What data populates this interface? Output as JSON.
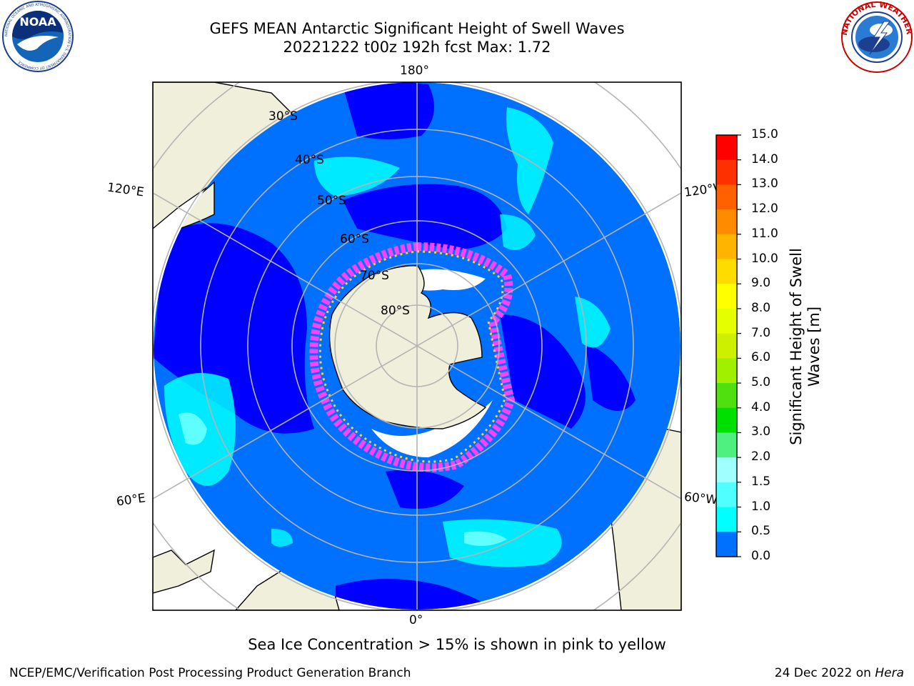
{
  "header": {
    "title": "GEFS MEAN Antarctic Significant Height of Swell Waves",
    "subtitle": "20221222 t00z 192h fcst   Max: 1.72"
  },
  "logos": {
    "left": {
      "text": "NOAA",
      "ring": "NATIONAL OCEANIC AND ATMOSPHERIC ADMINISTRATION  U.S. DEPARTMENT OF COMMERCE",
      "icon": "noaa-logo"
    },
    "right": {
      "ring": "NATIONAL WEATHER SERVICE",
      "icon": "nws-logo"
    }
  },
  "map": {
    "projection": "south-polar-stereographic",
    "meridian_labels": [
      "180°",
      "120°E",
      "120°W",
      "60°E",
      "60°W",
      "0°"
    ],
    "parallel_labels": [
      "30°S",
      "40°S",
      "50°S",
      "60°S",
      "70°S",
      "80°S"
    ],
    "colors": {
      "land": "#efefdb",
      "ocean_low": "#0000ff",
      "ocean_mid": "#0070ff",
      "ocean_high": "#00ffff",
      "ice_pink": "#ff40ff",
      "ice_yellow": "#ffd030",
      "grid": "#b4b4b4"
    }
  },
  "colorbar": {
    "ticks": [
      "15.0",
      "14.0",
      "13.0",
      "12.0",
      "11.0",
      "10.0",
      "9.0",
      "8.0",
      "7.0",
      "6.0",
      "5.0",
      "4.0",
      "3.0",
      "2.0",
      "1.5",
      "1.0",
      "0.5",
      "0.0"
    ],
    "colors": [
      "#ff0000",
      "#ff3000",
      "#ff6000",
      "#ff8c00",
      "#ffb400",
      "#ffdc00",
      "#ffff00",
      "#e6ff00",
      "#ccf000",
      "#a0f000",
      "#50e010",
      "#00e000",
      "#50f080",
      "#a0ffff",
      "#50ffff",
      "#00ffff",
      "#0070ff",
      "#0000ff"
    ],
    "label": "Significant Height of Swell\nWaves [m]"
  },
  "note": "Sea Ice Concentration > 15% is shown in pink to yellow",
  "footer": {
    "left": "NCEP/EMC/Verification Post Processing Product Generation Branch",
    "date": "24 Dec 2022 on",
    "machine": "Hera"
  }
}
